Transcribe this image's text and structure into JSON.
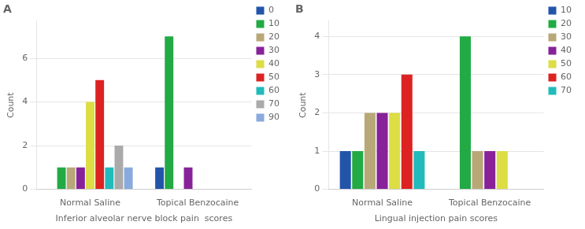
{
  "chart_data": [
    {
      "type": "bar",
      "title": "A",
      "xlabel": "Inferior alveolar nerve block pain  scores",
      "ylabel": "Count",
      "categories": [
        "Normal Saline",
        "Topical Benzocaine"
      ],
      "series": [
        {
          "name": "0",
          "color": "#2255aa",
          "values": [
            0,
            1
          ]
        },
        {
          "name": "10",
          "color": "#22aa44",
          "values": [
            1,
            7
          ]
        },
        {
          "name": "20",
          "color": "#b8a878",
          "values": [
            1,
            0
          ]
        },
        {
          "name": "30",
          "color": "#882299",
          "values": [
            1,
            1
          ]
        },
        {
          "name": "40",
          "color": "#dddd44",
          "values": [
            4,
            0
          ]
        },
        {
          "name": "50",
          "color": "#dd2222",
          "values": [
            5,
            0
          ]
        },
        {
          "name": "60",
          "color": "#22bbbb",
          "values": [
            1,
            0
          ]
        },
        {
          "name": "70",
          "color": "#aaaaaa",
          "values": [
            2,
            0
          ]
        },
        {
          "name": "90",
          "color": "#88aadd",
          "values": [
            1,
            0
          ]
        }
      ],
      "ylim": [
        0,
        7.7
      ],
      "yticks": [
        0,
        2,
        4,
        6
      ],
      "grid": true,
      "legend": "right"
    },
    {
      "type": "bar",
      "title": "B",
      "xlabel": "Lingual injection pain scores",
      "ylabel": "Count",
      "categories": [
        "Normal Saline",
        "Topical Benzocaine"
      ],
      "series": [
        {
          "name": "10",
          "color": "#2255aa",
          "values": [
            1,
            0
          ]
        },
        {
          "name": "20",
          "color": "#22aa44",
          "values": [
            1,
            4
          ]
        },
        {
          "name": "30",
          "color": "#b8a878",
          "values": [
            2,
            1
          ]
        },
        {
          "name": "40",
          "color": "#882299",
          "values": [
            2,
            1
          ]
        },
        {
          "name": "50",
          "color": "#dddd44",
          "values": [
            2,
            1
          ]
        },
        {
          "name": "60",
          "color": "#dd2222",
          "values": [
            3,
            0
          ]
        },
        {
          "name": "70",
          "color": "#22bbbb",
          "values": [
            1,
            0
          ]
        }
      ],
      "ylim": [
        0,
        4.4
      ],
      "yticks": [
        0,
        1,
        2,
        3,
        4
      ],
      "grid": true,
      "legend": "right"
    }
  ]
}
